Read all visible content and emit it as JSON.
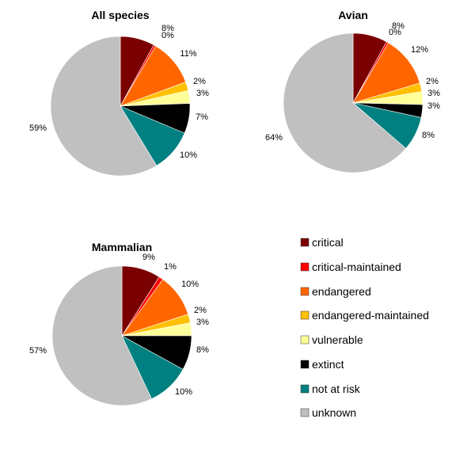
{
  "chart_data": [
    {
      "type": "pie",
      "title": "All species",
      "categories": [
        "critical",
        "critical-maintained",
        "endangered",
        "endangered-maintained",
        "vulnerable",
        "extinct",
        "not at risk",
        "unknown"
      ],
      "values": [
        8,
        0.5,
        11,
        2,
        3,
        7,
        10,
        59
      ],
      "labels": [
        "8%",
        "0%",
        "11%",
        "2%",
        "3%",
        "7%",
        "10%",
        "59%"
      ],
      "start": "12-o'clock",
      "direction": "clockwise"
    },
    {
      "type": "pie",
      "title": "Avian",
      "categories": [
        "critical",
        "critical-maintained",
        "endangered",
        "endangered-maintained",
        "vulnerable",
        "extinct",
        "not at risk",
        "unknown"
      ],
      "values": [
        8,
        0.5,
        12,
        2,
        3,
        3,
        8,
        64
      ],
      "labels": [
        "8%",
        "0%",
        "12%",
        "2%",
        "3%",
        "3%",
        "8%",
        "64%"
      ],
      "start": "12-o'clock",
      "direction": "clockwise"
    },
    {
      "type": "pie",
      "title": "Mammalian",
      "categories": [
        "critical",
        "critical-maintained",
        "endangered",
        "endangered-maintained",
        "vulnerable",
        "extinct",
        "not at risk",
        "unknown"
      ],
      "values": [
        9,
        1,
        10,
        2,
        3,
        8,
        10,
        57
      ],
      "labels": [
        "9%",
        "1%",
        "10%",
        "2%",
        "3%",
        "8%",
        "10%",
        "57%"
      ],
      "start": "12-o'clock",
      "direction": "clockwise"
    }
  ],
  "legend": {
    "placement": "bottom-right",
    "items": [
      {
        "label": "critical",
        "color": "#7b0000"
      },
      {
        "label": "critical-maintained",
        "color": "#ff0000"
      },
      {
        "label": "endangered",
        "color": "#ff6600"
      },
      {
        "label": "endangered-maintained",
        "color": "#ffc000"
      },
      {
        "label": "vulnerable",
        "color": "#ffff99"
      },
      {
        "label": "extinct",
        "color": "#000000"
      },
      {
        "label": "not at risk",
        "color": "#008080"
      },
      {
        "label": "unknown",
        "color": "#c0c0c0"
      }
    ]
  }
}
